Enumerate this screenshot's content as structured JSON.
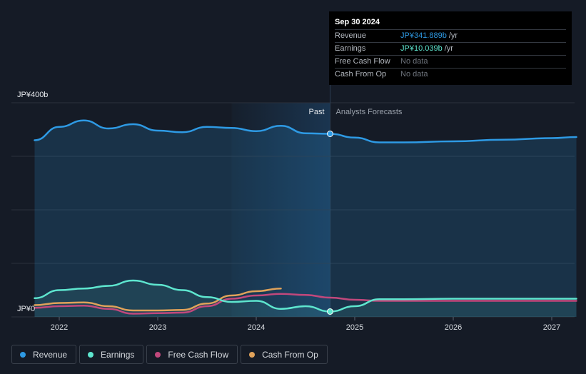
{
  "colors": {
    "revenue": "#2e9ae4",
    "earnings": "#5ee6cf",
    "free_cash_flow": "#c1487c",
    "cash_from_op": "#e0a25a",
    "grid": "#2a313c",
    "past_shade": "#1a2f46"
  },
  "tooltip": {
    "date": "Sep 30 2024",
    "rows": [
      {
        "label": "Revenue",
        "value": "JP¥341.889b",
        "unit": "/yr",
        "color": "#2e9ae4"
      },
      {
        "label": "Earnings",
        "value": "JP¥10.039b",
        "unit": "/yr",
        "color": "#5ee6cf"
      },
      {
        "label": "Free Cash Flow",
        "value": "No data"
      },
      {
        "label": "Cash From Op",
        "value": "No data"
      }
    ]
  },
  "legend": [
    {
      "label": "Revenue",
      "color": "#2e9ae4"
    },
    {
      "label": "Earnings",
      "color": "#5ee6cf"
    },
    {
      "label": "Free Cash Flow",
      "color": "#c1487c"
    },
    {
      "label": "Cash From Op",
      "color": "#e0a25a"
    }
  ],
  "chart_data": {
    "type": "line",
    "y_axis": {
      "top_label": "JP¥400b",
      "bottom_label": "JP¥0",
      "ylim": [
        0,
        400
      ]
    },
    "x_axis": {
      "ticks": [
        "2022",
        "2023",
        "2024",
        "2025",
        "2026",
        "2027"
      ],
      "xlim": [
        2021.75,
        2027.25
      ]
    },
    "divider": {
      "x": 2024.75,
      "past_label": "Past",
      "forecast_label": "Analysts Forecasts"
    },
    "series": [
      {
        "name": "Revenue",
        "key": "revenue",
        "x": [
          2021.75,
          2022.0,
          2022.25,
          2022.5,
          2022.75,
          2023.0,
          2023.25,
          2023.5,
          2023.75,
          2024.0,
          2024.25,
          2024.5,
          2024.75,
          2025.0,
          2025.25,
          2025.5,
          2026.0,
          2026.5,
          2027.0,
          2027.25
        ],
        "values": [
          330,
          355,
          367,
          352,
          360,
          348,
          345,
          355,
          353,
          347,
          357,
          343,
          342,
          335,
          326,
          326,
          328,
          331,
          334,
          336
        ]
      },
      {
        "name": "Earnings",
        "key": "earnings",
        "x": [
          2021.75,
          2022.0,
          2022.25,
          2022.5,
          2022.75,
          2023.0,
          2023.25,
          2023.5,
          2023.75,
          2024.0,
          2024.25,
          2024.5,
          2024.75,
          2025.0,
          2025.25,
          2025.5,
          2026.0,
          2026.5,
          2027.0,
          2027.25
        ],
        "values": [
          35,
          50,
          53,
          58,
          68,
          60,
          50,
          37,
          28,
          30,
          15,
          20,
          10,
          20,
          33,
          33,
          34,
          34,
          34,
          34
        ]
      },
      {
        "name": "Free Cash Flow",
        "key": "free_cash_flow",
        "x": [
          2021.75,
          2022.0,
          2022.25,
          2022.5,
          2022.75,
          2023.0,
          2023.25,
          2023.5,
          2023.75,
          2024.0,
          2024.25,
          2024.5,
          2024.75,
          2025.0,
          2025.25,
          2025.5,
          2026.0,
          2026.5,
          2027.0,
          2027.25
        ],
        "values": [
          17,
          20,
          21,
          15,
          6,
          7,
          8,
          20,
          34,
          40,
          43,
          41,
          36,
          32,
          30,
          30,
          30,
          30,
          30,
          30
        ]
      },
      {
        "name": "Cash From Op",
        "key": "cash_from_op",
        "x": [
          2021.75,
          2022.0,
          2022.25,
          2022.5,
          2022.75,
          2023.0,
          2023.25,
          2023.5,
          2023.75,
          2024.0,
          2024.25
        ],
        "values": [
          22,
          26,
          27,
          20,
          12,
          12,
          13,
          25,
          40,
          48,
          53
        ]
      }
    ]
  }
}
